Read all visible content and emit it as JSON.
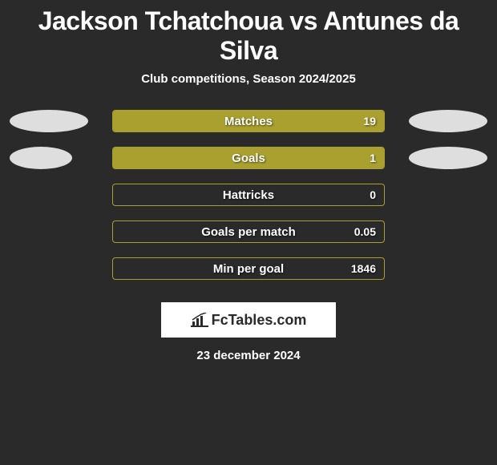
{
  "title": "Jackson Tchatchoua vs Antunes da Silva",
  "subtitle": "Club competitions, Season 2024/2025",
  "colors": {
    "bar_fill": "#a9a030",
    "bar_border": "#a9a030",
    "ellipse_left": "#dedede",
    "ellipse_right": "#dedede",
    "background": "#2a2a2a"
  },
  "stats": [
    {
      "label": "Matches",
      "value": "19",
      "fill_pct": 100,
      "left_ellipse": true,
      "right_ellipse": true,
      "left_ellipse_w": 98,
      "right_ellipse_w": 98
    },
    {
      "label": "Goals",
      "value": "1",
      "fill_pct": 100,
      "left_ellipse": true,
      "right_ellipse": true,
      "left_ellipse_w": 78,
      "right_ellipse_w": 98
    },
    {
      "label": "Hattricks",
      "value": "0",
      "fill_pct": 0,
      "left_ellipse": false,
      "right_ellipse": false
    },
    {
      "label": "Goals per match",
      "value": "0.05",
      "fill_pct": 0,
      "left_ellipse": false,
      "right_ellipse": false
    },
    {
      "label": "Min per goal",
      "value": "1846",
      "fill_pct": 0,
      "left_ellipse": false,
      "right_ellipse": false
    }
  ],
  "logo_text": "FcTables.com",
  "date": "23 december 2024"
}
